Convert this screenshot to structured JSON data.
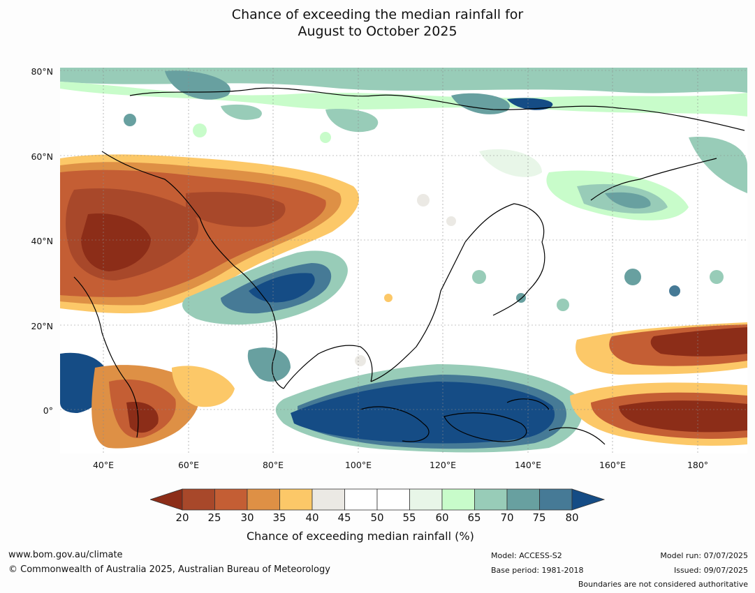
{
  "title": {
    "line1": "Chance of exceeding the median rainfall for",
    "line2": "August to October 2025"
  },
  "map": {
    "lat_labels": [
      "80°N",
      "60°N",
      "40°N",
      "20°N",
      "0°"
    ],
    "lon_labels": [
      "40°E",
      "60°E",
      "80°E",
      "100°E",
      "120°E",
      "140°E",
      "160°E",
      "180°"
    ],
    "region": "Asia, Indian Ocean and Western Pacific",
    "lon_range": [
      30,
      190
    ],
    "lat_range": [
      -10,
      80
    ]
  },
  "colorbar": {
    "label": "Chance of exceeding median rainfall (%)",
    "ticks": [
      "20",
      "25",
      "30",
      "35",
      "40",
      "45",
      "50",
      "55",
      "60",
      "65",
      "70",
      "75",
      "80"
    ],
    "colors": {
      "below_20": "#8c2d18",
      "20_25": "#a8482a",
      "25_30": "#c45e34",
      "30_35": "#de9045",
      "35_40": "#fcc868",
      "40_45": "#ebe9e4",
      "45_50": "#ffffff",
      "50_55": "#ffffff",
      "55_60": "#e8f6e8",
      "60_65": "#c8fcca",
      "65_70": "#98ccb8",
      "70_75": "#68a0a0",
      "75_80": "#467a96",
      "above_80": "#154c85"
    }
  },
  "footer": {
    "url": "www.bom.gov.au/climate",
    "copyright": "© Commonwealth of Australia 2025, Australian Bureau of Meteorology",
    "model": "Model: ACCESS-S2",
    "base_period": "Base period: 1981-2018",
    "model_run": "Model run: 07/07/2025",
    "issued": "Issued: 09/07/2025",
    "disclaimer": "Boundaries are not considered authoritative"
  }
}
